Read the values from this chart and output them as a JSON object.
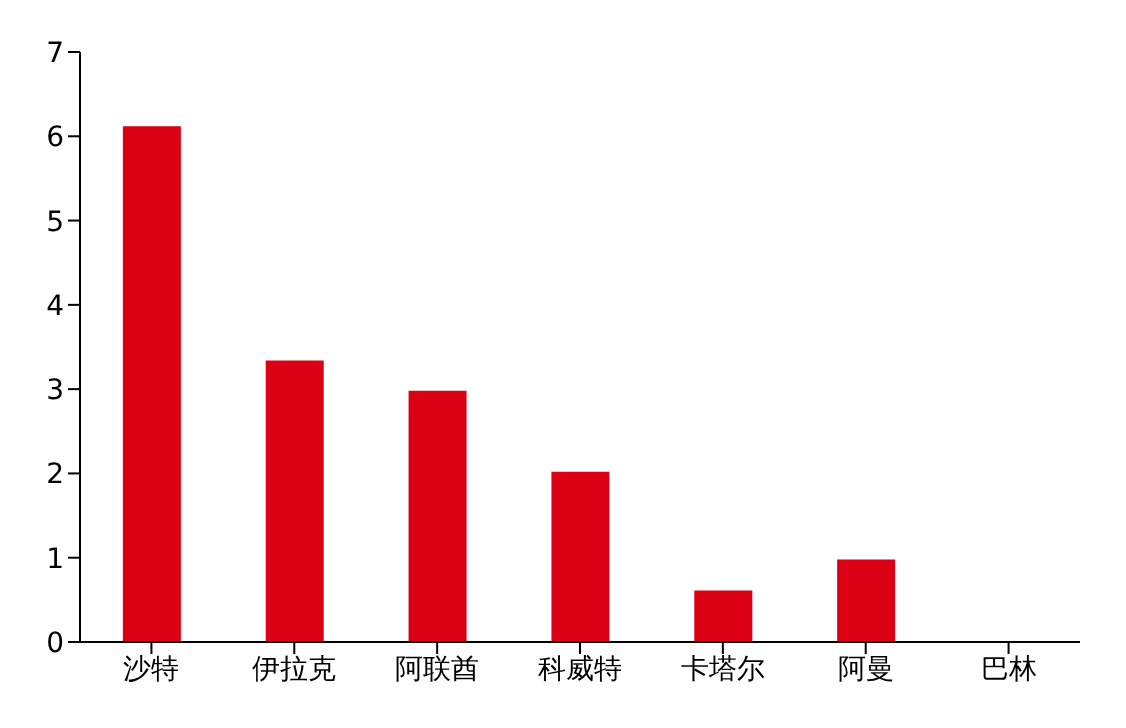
{
  "chart_data": {
    "type": "bar",
    "categories": [
      "沙特",
      "伊拉克",
      "阿联酋",
      "科威特",
      "卡塔尔",
      "阿曼",
      "巴林"
    ],
    "values": [
      6.12,
      3.34,
      2.98,
      2.02,
      0.61,
      0.98,
      0
    ],
    "color": "#dc0014",
    "ylim": [
      0,
      7
    ],
    "yticks": [
      0,
      1,
      2,
      3,
      4,
      5,
      6,
      7
    ],
    "grid": false
  }
}
